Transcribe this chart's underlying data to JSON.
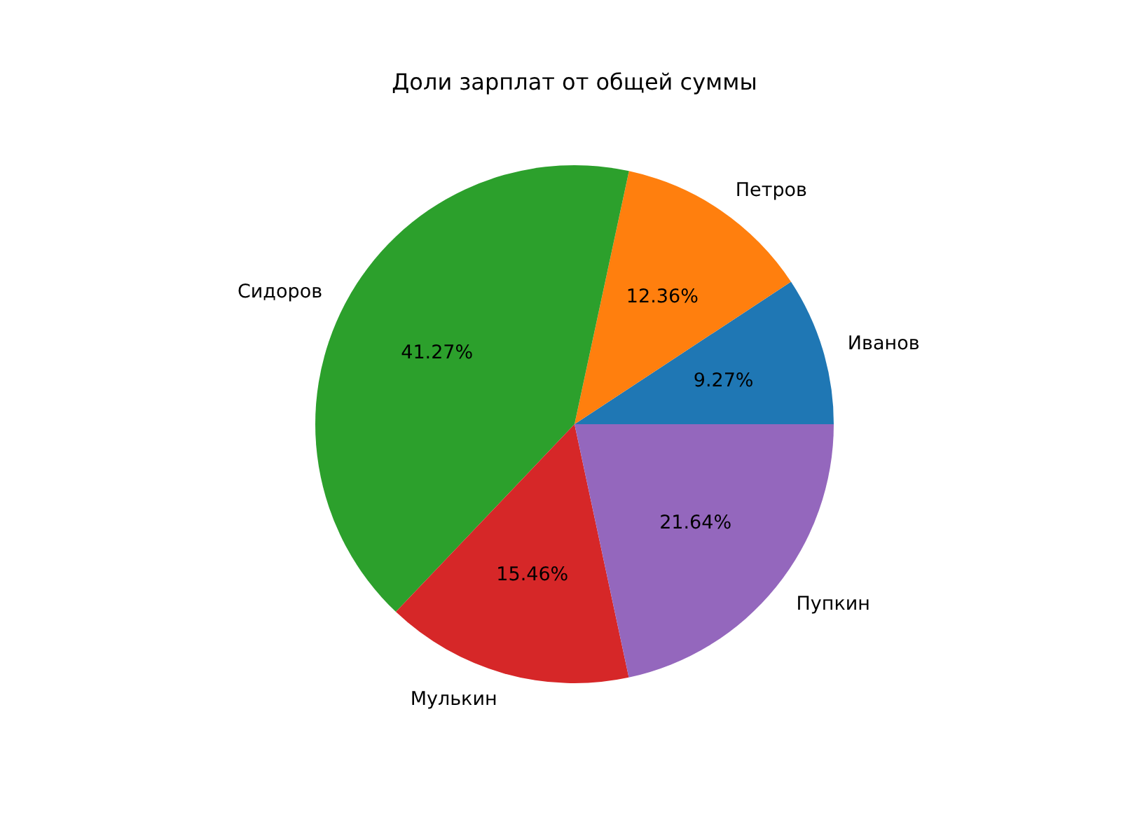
{
  "chart_data": {
    "type": "pie",
    "title": "Доли зарплат от общей суммы",
    "categories": [
      "Иванов",
      "Петров",
      "Сидоров",
      "Мулькин",
      "Пупкин"
    ],
    "values": [
      9.27,
      12.36,
      41.27,
      15.46,
      21.64
    ],
    "colors": [
      "#1f77b4",
      "#ff7f0e",
      "#2ca02c",
      "#d62728",
      "#9467bd"
    ],
    "value_labels": [
      "9.27%",
      "12.36%",
      "41.27%",
      "15.46%",
      "21.64%"
    ],
    "legend": false
  }
}
